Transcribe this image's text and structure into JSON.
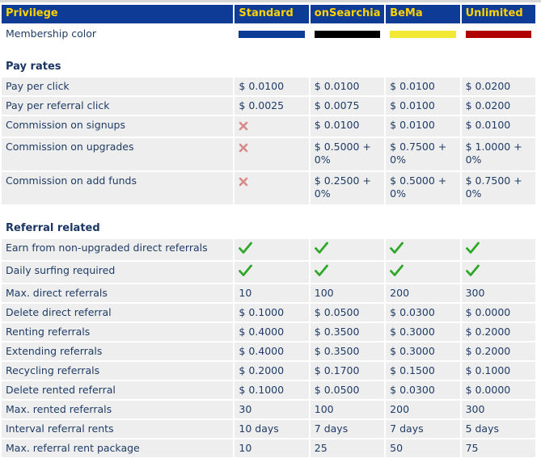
{
  "headers": [
    "Privilege",
    "Standard",
    "onSearchia",
    "BeMa",
    "Unlimited"
  ],
  "membership_color": {
    "label": "Membership color",
    "colors": [
      "#0e3b96",
      "#000000",
      "#f2e835",
      "#b00000"
    ]
  },
  "sections": [
    {
      "title": "Pay rates",
      "rows": [
        {
          "label": "Pay per click",
          "values": [
            "$ 0.0100",
            "$ 0.0100",
            "$ 0.0100",
            "$ 0.0200"
          ]
        },
        {
          "label": "Pay per referral click",
          "values": [
            "$ 0.0025",
            "$ 0.0075",
            "$ 0.0100",
            "$ 0.0200"
          ]
        },
        {
          "label": "Commission on signups",
          "values": [
            "cross",
            "$ 0.0100",
            "$ 0.0100",
            "$ 0.0100"
          ]
        },
        {
          "label": "Commission on upgrades",
          "values": [
            "cross",
            "$ 0.5000 + 0%",
            "$ 0.7500 + 0%",
            "$ 1.0000 + 0%"
          ],
          "tall": true
        },
        {
          "label": "Commission on add funds",
          "values": [
            "cross",
            "$ 0.2500 + 0%",
            "$ 0.5000 + 0%",
            "$ 0.7500 + 0%"
          ],
          "tall": true
        }
      ]
    },
    {
      "title": "Referral related",
      "rows": [
        {
          "label": "Earn from non-upgraded direct referrals",
          "values": [
            "check",
            "check",
            "check",
            "check"
          ]
        },
        {
          "label": "Daily surfing required",
          "values": [
            "check",
            "check",
            "check",
            "check"
          ]
        },
        {
          "label": "Max. direct referrals",
          "values": [
            "10",
            "100",
            "200",
            "300"
          ]
        },
        {
          "label": "Delete direct referral",
          "values": [
            "$ 0.1000",
            "$ 0.0500",
            "$ 0.0300",
            "$ 0.0000"
          ]
        },
        {
          "label": "Renting referrals",
          "values": [
            "$ 0.4000",
            "$ 0.3500",
            "$ 0.3000",
            "$ 0.2000"
          ]
        },
        {
          "label": "Extending referrals",
          "values": [
            "$ 0.4000",
            "$ 0.3500",
            "$ 0.3000",
            "$ 0.2000"
          ]
        },
        {
          "label": "Recycling referrals",
          "values": [
            "$ 0.2000",
            "$ 0.1700",
            "$ 0.1500",
            "$ 0.1000"
          ]
        },
        {
          "label": "Delete rented referral",
          "values": [
            "$ 0.1000",
            "$ 0.0500",
            "$ 0.0300",
            "$ 0.0000"
          ]
        },
        {
          "label": "Max. rented referrals",
          "values": [
            "30",
            "100",
            "200",
            "300"
          ]
        },
        {
          "label": "Interval referral rents",
          "values": [
            "10 days",
            "7 days",
            "7 days",
            "5 days"
          ]
        },
        {
          "label": "Max. referral rent package",
          "values": [
            "10",
            "25",
            "50",
            "75"
          ]
        }
      ]
    }
  ]
}
